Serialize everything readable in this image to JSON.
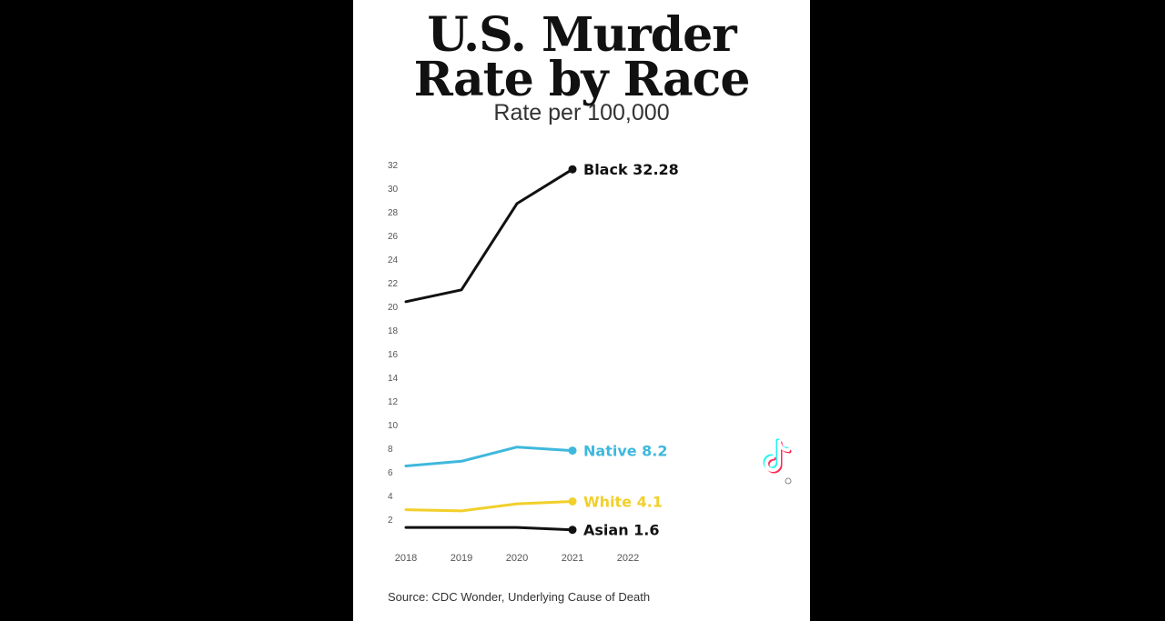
{
  "title_line1": "U.S. Murder",
  "title_line2": "Rate by Race",
  "subtitle": "Rate per 100,000",
  "source": "Source: CDC Wonder, Underlying Cause of Death",
  "chart_data": {
    "type": "line",
    "title": "U.S. Murder Rate by Race",
    "subtitle": "Rate per 100,000",
    "xlabel": "",
    "ylabel": "",
    "x_ticks": [
      "2018",
      "2019",
      "2020",
      "2021",
      "2022"
    ],
    "y_ticks": [
      2,
      4,
      6,
      8,
      10,
      12,
      14,
      16,
      18,
      20,
      22,
      24,
      26,
      28,
      30,
      32
    ],
    "ylim": [
      0,
      32
    ],
    "grid": false,
    "x": [
      2018,
      2019,
      2020,
      2021
    ],
    "series": [
      {
        "name": "Black",
        "values": [
          20.4,
          21.4,
          28.7,
          31.6
        ],
        "color": "#111111",
        "end_label": "Black 32.28"
      },
      {
        "name": "Native",
        "values": [
          6.5,
          6.9,
          8.1,
          7.8
        ],
        "color": "#3fb8dd",
        "end_label": "Native 8.2"
      },
      {
        "name": "White",
        "values": [
          2.8,
          2.7,
          3.3,
          3.5
        ],
        "color": "#f2cf2a",
        "end_label": "White 4.1"
      },
      {
        "name": "Asian",
        "values": [
          1.3,
          1.3,
          1.3,
          1.1
        ],
        "color": "#111111",
        "end_label": "Asian 1.6"
      }
    ]
  },
  "watermark_icon": "tiktok-icon"
}
